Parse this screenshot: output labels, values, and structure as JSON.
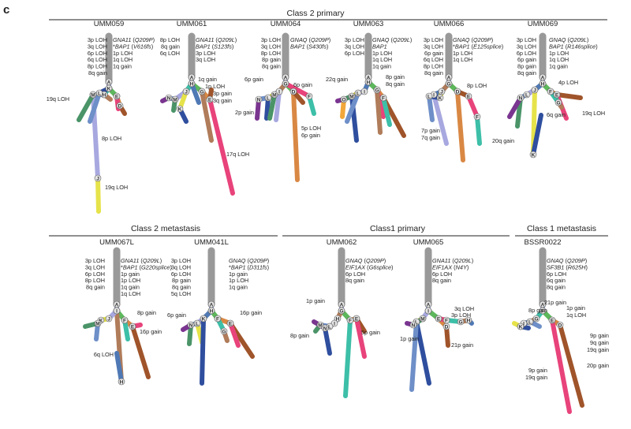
{
  "panel_label": "c",
  "groups": [
    "Class 2 primary",
    "Class 2 metastasis",
    "Class1 primary",
    "Class 1 metastasis"
  ],
  "colors": {
    "trunk": "#999999",
    "A": "#9aa6d9",
    "B": "#5db85c",
    "C": "#d98844",
    "D": "#a0542a",
    "E": "#e8437a",
    "F": "#3dbfa8",
    "G": "#b07c5a",
    "H": "#4f79b5",
    "I": "#a8a8e0",
    "J": "#e6e34a",
    "K": "#2f4e9e",
    "L": "#6e8fc8",
    "M": "#4a9468",
    "N": "#7a3590",
    "O": "#f2a73a",
    "P": "#f0c040",
    "Q": "#88ccee"
  },
  "samples": [
    {
      "name": "UMM059",
      "left": [
        "3p LOH",
        "3q LOH",
        "6p LOH",
        "6q LOH",
        "8p LOH",
        "8q gain"
      ],
      "right": [
        "GNA11 (Q209P)",
        "*BAP1 (V616fs)",
        "1p LOH",
        "1q LOH",
        "1q gain"
      ],
      "branch_labels": [
        "19q LOH",
        "8p LOH",
        "19q LOH"
      ]
    },
    {
      "name": "UMM061",
      "left": [
        "8p LOH",
        "8q gain",
        "6q LOH"
      ],
      "right": [
        "GNA11 (Q209L)",
        "BAP1 (S123fs)",
        "3p LOH",
        "3q LOH"
      ],
      "branch_labels": [
        "1q gain",
        "1p LOH",
        "3p gain",
        "3q gain",
        "2p gain",
        "17q LOH"
      ]
    },
    {
      "name": "UMM064",
      "left": [
        "3p LOH",
        "3q LOH",
        "8p LOH",
        "8p gain",
        "8q gain"
      ],
      "right": [
        "GNAQ (Q209P)",
        "BAP1 (S430fs)"
      ],
      "branch_labels": [
        "6p gain",
        "6p gain",
        "5p LOH",
        "6p gain"
      ]
    },
    {
      "name": "UMM063",
      "left": [
        "3p LOH",
        "3q LOH",
        "6p LOH"
      ],
      "right": [
        "GNAQ (Q209L)",
        "BAP1",
        "1p LOH",
        "1q LOH",
        "1q gain"
      ],
      "branch_labels": [
        "22q gain",
        "8p gain",
        "8q gain"
      ]
    },
    {
      "name": "UMM066",
      "left": [
        "3p LOH",
        "3q LOH",
        "6p gain",
        "6q LOH",
        "8p LOH",
        "8q gain"
      ],
      "right": [
        "GNAQ (Q209P)",
        "*BAP1 (E125splice)",
        "1p LOH",
        "1q LOH"
      ],
      "branch_labels": [
        "8p LOH",
        "7p gain",
        "7q gain",
        "20q gain"
      ]
    },
    {
      "name": "UMM069",
      "left": [
        "3p LOH",
        "3q LOH",
        "6p LOH",
        "6p gain",
        "8p gain",
        "8q gain"
      ],
      "right": [
        "GNAQ (Q209L)",
        "BAP1 (R146splice)",
        "1p LOH",
        "1q LOH",
        "1q gain"
      ],
      "branch_labels": [
        "4p LOH",
        "6q gain",
        "19q LOH"
      ]
    },
    {
      "name": "UMM067L",
      "left": [
        "3p LOH",
        "3q LOH",
        "6p LOH",
        "8p LOH",
        "8q gain"
      ],
      "right": [
        "GNA11 (Q209L)",
        "*BAP1 (G220splice)",
        "1p gain",
        "1p LOH",
        "1q gain",
        "1q LOH"
      ],
      "branch_labels": [
        "8p gain",
        "16p gain",
        "6q LOH"
      ]
    },
    {
      "name": "UMM041L",
      "left": [
        "3p LOH",
        "3q LOH",
        "6p LOH",
        "8p gain",
        "8q gain",
        "5q LOH"
      ],
      "right": [
        "GNAQ (Q209P)",
        "*BAP1 (D311fs)",
        "1p gain",
        "1p LOH",
        "1q gain"
      ],
      "branch_labels": [
        "6p gain",
        "16p gain"
      ]
    },
    {
      "name": "UMM062",
      "left": [],
      "right": [
        "GNAQ (Q209P)",
        "EIF1AX (G6splice)",
        "6p LOH",
        "8q gain"
      ],
      "branch_labels": [
        "1p gain",
        "8p gain",
        "5p gain"
      ]
    },
    {
      "name": "UMM065",
      "left": [],
      "right": [
        "GNA11 (Q209L)",
        "EIF1AX (N4Y)",
        "6p LOH",
        "8q gain"
      ],
      "branch_labels": [
        "3q LOH",
        "3p LOH",
        "1p gain",
        "21p gain"
      ]
    },
    {
      "name": "BSSR0022",
      "left": [],
      "right": [
        "GNAQ (Q209P)",
        "SF3B1 (R625H)",
        "6p LOH",
        "6q gain",
        "8q gain"
      ],
      "branch_labels": [
        "21p gain",
        "8p gain",
        "1p gain",
        "1q LOH",
        "9p gain",
        "9q gain",
        "19q gain",
        "20p gain",
        "9p gain",
        "19q gain"
      ]
    }
  ]
}
